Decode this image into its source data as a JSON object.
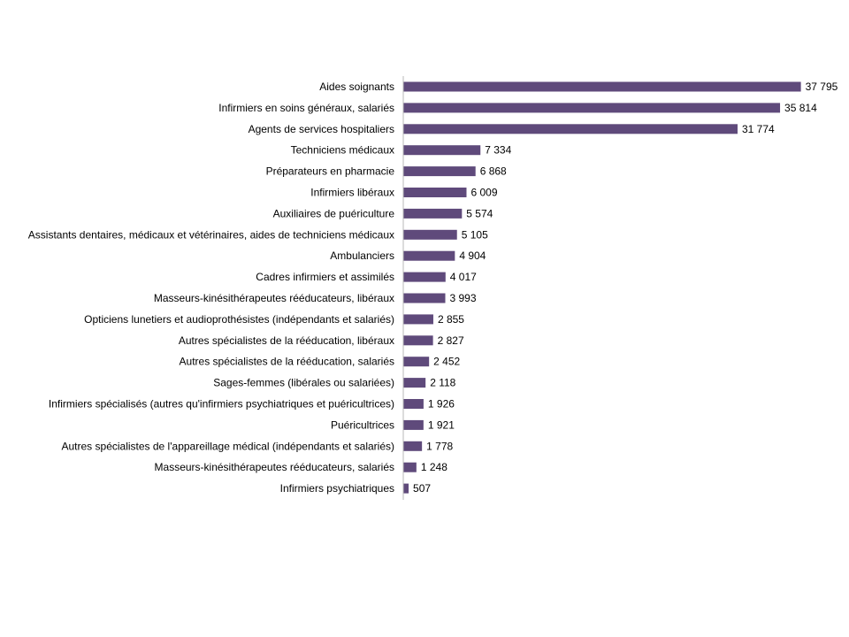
{
  "chart_data": {
    "type": "bar",
    "orientation": "horizontal",
    "title": "",
    "xlabel": "",
    "ylabel": "",
    "legend": "none",
    "grid": false,
    "bar_color": "#5f4a7b",
    "xlim": [
      0,
      38500
    ],
    "categories": [
      "Aides soignants",
      "Infirmiers en soins généraux, salariés",
      "Agents de services hospitaliers",
      "Techniciens médicaux",
      "Préparateurs en pharmacie",
      "Infirmiers libéraux",
      "Auxiliaires de puériculture",
      "Assistants dentaires, médicaux et vétérinaires, aides de techniciens médicaux",
      "Ambulanciers",
      "Cadres infirmiers et assimilés",
      "Masseurs-kinésithérapeutes rééducateurs, libéraux",
      "Opticiens lunetiers et audioprothésistes (indépendants et salariés)",
      "Autres spécialistes de la rééducation, libéraux",
      "Autres spécialistes de la rééducation, salariés",
      "Sages-femmes (libérales ou salariées)",
      "Infirmiers spécialisés (autres qu'infirmiers psychiatriques et puéricultrices)",
      "Puéricultrices",
      "Autres spécialistes de l'appareillage médical (indépendants et salariés)",
      "Masseurs-kinésithérapeutes rééducateurs, salariés",
      "Infirmiers psychiatriques"
    ],
    "values": [
      37795,
      35814,
      31774,
      7334,
      6868,
      6009,
      5574,
      5105,
      4904,
      4017,
      3993,
      2855,
      2827,
      2452,
      2118,
      1926,
      1921,
      1778,
      1248,
      507
    ],
    "value_labels": [
      "37 795",
      "35 814",
      "31 774",
      "7 334",
      "6 868",
      "6 009",
      "5 574",
      "5 105",
      "4 904",
      "4 017",
      "3 993",
      "2 855",
      "2 827",
      "2 452",
      "2 118",
      "1 926",
      "1 921",
      "1 778",
      "1 248",
      "507"
    ]
  }
}
